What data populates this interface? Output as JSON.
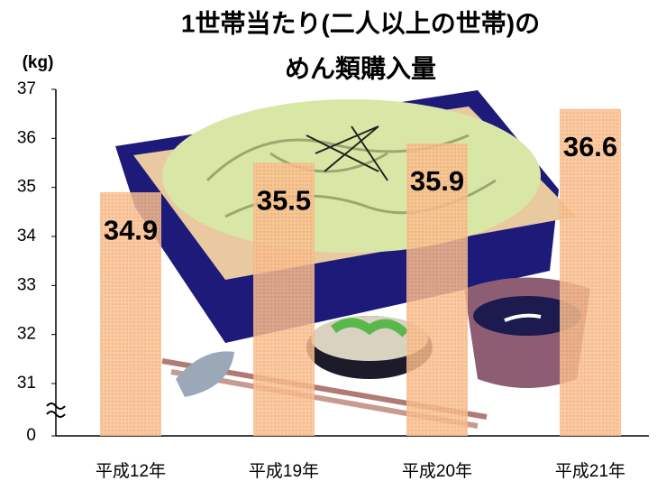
{
  "chart_data": {
    "type": "bar",
    "title": [
      "1世帯当たり(二人以上の世帯)の",
      "めん類購入量"
    ],
    "y_label": "(kg)",
    "categories": [
      "平成12年",
      "平成19年",
      "平成20年",
      "平成21年"
    ],
    "values": [
      34.9,
      35.5,
      35.9,
      36.6
    ],
    "color": "#f8c090",
    "ylim": [
      0,
      37
    ],
    "yticks": [
      0,
      31,
      32,
      33,
      34,
      35,
      36,
      37
    ],
    "axis_break": true,
    "data_labels": true
  }
}
